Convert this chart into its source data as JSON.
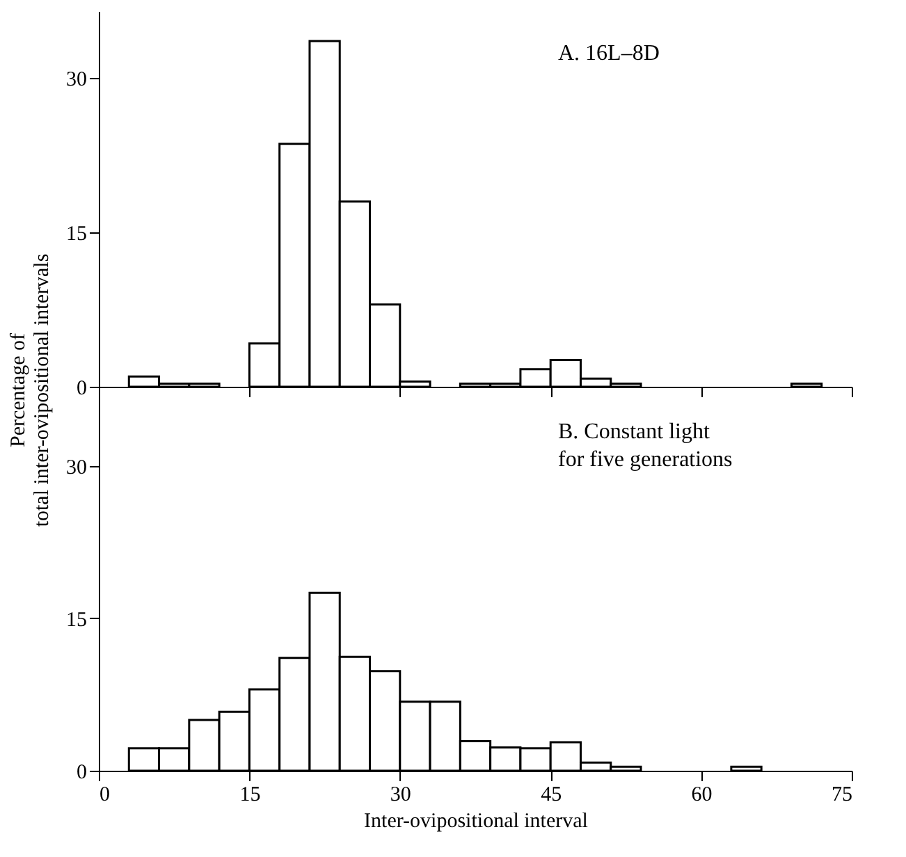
{
  "chart_data": [
    {
      "type": "histogram",
      "annotations": [
        "A. 16L–8D"
      ],
      "ylabel": "Percentage of\ntotal inter-ovipositional intervals",
      "bins": [
        3,
        6,
        9,
        12,
        15,
        18,
        21,
        24,
        27,
        30,
        33,
        36,
        39,
        42,
        45,
        48,
        51,
        54,
        57,
        60,
        63,
        66,
        69,
        72
      ],
      "values": [
        1.0,
        0.3,
        0.3,
        0,
        4.2,
        23.6,
        33.6,
        18.0,
        8.0,
        0.5,
        0,
        0.3,
        0.3,
        1.7,
        2.6,
        0.8,
        0.3,
        0,
        0,
        0,
        0,
        0,
        0.3
      ],
      "color": "#ffffff",
      "xlim": [
        0,
        75
      ],
      "xticks": [
        {
          "value": 0,
          "label": null
        },
        {
          "value": 15,
          "label": null
        },
        {
          "value": 30,
          "label": null
        },
        {
          "value": 45,
          "label": null
        },
        {
          "value": 60,
          "label": null
        },
        {
          "value": 75,
          "label": null
        }
      ],
      "ylim": [
        0,
        36.5
      ],
      "yticks": [
        0,
        15,
        30
      ],
      "tick_labels": "y",
      "grid": false
    },
    {
      "type": "histogram",
      "annotations": [
        "B. Constant light\nfor five generations"
      ],
      "xlabel": "Inter-ovipositional interval",
      "bins": [
        3,
        6,
        9,
        12,
        15,
        18,
        21,
        24,
        27,
        30,
        33,
        36,
        39,
        42,
        45,
        48,
        51,
        54,
        57,
        60,
        63,
        66,
        69,
        72
      ],
      "values": [
        2.2,
        2.2,
        5.0,
        5.8,
        8.0,
        11.1,
        17.5,
        11.2,
        9.8,
        6.8,
        6.8,
        2.9,
        2.3,
        2.2,
        2.8,
        0.8,
        0.4,
        0,
        0,
        0,
        0.4,
        0,
        0
      ],
      "color": "#ffffff",
      "xlim": [
        0,
        75
      ],
      "xticks": [
        0,
        15,
        30,
        45,
        60,
        75
      ],
      "ylim": [
        0,
        37.5
      ],
      "yticks": [
        0,
        15,
        30
      ],
      "grid": false
    }
  ]
}
